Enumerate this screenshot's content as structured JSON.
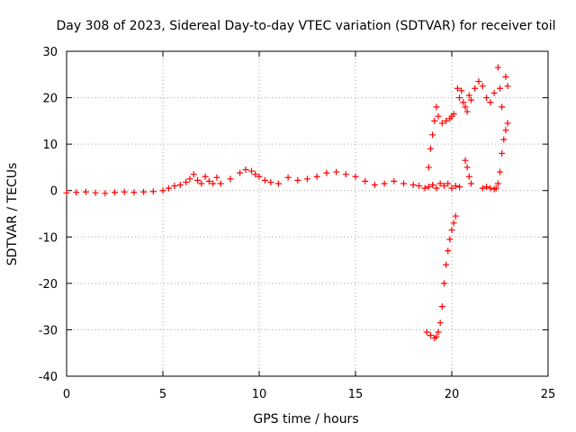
{
  "chart_data": {
    "type": "scatter",
    "title": "Day 308 of 2023, Sidereal Day-to-day VTEC variation (SDTVAR) for receiver toil",
    "xlabel": "GPS time / hours",
    "ylabel": "SDTVAR / TECUs",
    "xlim": [
      0,
      25
    ],
    "ylim": [
      -40,
      30
    ],
    "xticks": [
      0,
      5,
      10,
      15,
      20,
      25
    ],
    "yticks": [
      -40,
      -30,
      -20,
      -10,
      0,
      10,
      20,
      30
    ],
    "grid": true,
    "marker": "+",
    "color": "#ff0000",
    "series": [
      {
        "name": "main",
        "x": [
          0.0,
          0.5,
          1.0,
          1.5,
          2.0,
          2.5,
          3.0,
          3.5,
          4.0,
          4.5,
          5.0,
          5.3,
          5.6,
          5.9,
          6.2,
          6.4,
          6.6,
          6.8,
          7.0,
          7.2,
          7.4,
          7.6,
          7.8,
          8.0,
          8.5,
          9.0,
          9.3,
          9.6,
          9.8,
          10.0,
          10.3,
          10.6,
          11.0,
          11.5,
          12.0,
          12.5,
          13.0,
          13.5,
          14.0,
          14.5,
          15.0,
          15.5,
          16.0,
          16.5,
          17.0,
          17.5,
          18.0,
          18.3,
          18.6,
          18.8,
          19.0,
          19.2,
          19.4,
          19.6,
          19.8,
          20.0,
          20.2,
          20.4
        ],
        "y": [
          -0.5,
          -0.4,
          -0.3,
          -0.5,
          -0.6,
          -0.4,
          -0.3,
          -0.4,
          -0.3,
          -0.2,
          0.0,
          0.5,
          1.0,
          1.2,
          1.8,
          2.5,
          3.5,
          2.2,
          1.5,
          3.0,
          2.0,
          1.5,
          2.8,
          1.5,
          2.5,
          3.8,
          4.5,
          4.2,
          3.5,
          3.0,
          2.2,
          1.8,
          1.5,
          2.8,
          2.2,
          2.5,
          3.0,
          3.8,
          4.0,
          3.5,
          3.0,
          2.0,
          1.2,
          1.5,
          2.0,
          1.5,
          1.2,
          1.0,
          0.5,
          0.8,
          1.2,
          0.5,
          1.5,
          1.0,
          1.5,
          0.5,
          1.0,
          0.8
        ]
      },
      {
        "name": "rise-a",
        "x": [
          18.8,
          18.9,
          19.0,
          19.1,
          19.2,
          19.3,
          19.5,
          19.7,
          19.9,
          20.0,
          20.1
        ],
        "y": [
          5.0,
          9.0,
          12.0,
          15.0,
          18.0,
          16.0,
          14.5,
          15.0,
          15.5,
          16.0,
          16.5
        ]
      },
      {
        "name": "dip",
        "x": [
          18.7,
          18.9,
          19.1,
          19.2,
          19.3,
          19.4,
          19.5,
          19.6,
          19.7,
          19.8,
          19.9,
          20.0,
          20.1,
          20.2
        ],
        "y": [
          -30.5,
          -31.2,
          -31.8,
          -31.5,
          -30.5,
          -28.5,
          -25.0,
          -20.0,
          -16.0,
          -13.0,
          -10.5,
          -8.5,
          -7.0,
          -5.5
        ]
      },
      {
        "name": "cluster",
        "x": [
          20.3,
          20.4,
          20.5,
          20.6,
          20.7,
          20.8,
          20.9,
          21.0,
          21.2,
          21.4,
          21.6,
          21.8,
          22.0,
          22.2,
          22.4,
          22.5,
          22.6,
          22.8,
          22.9
        ],
        "y": [
          22.0,
          20.0,
          21.5,
          19.0,
          18.0,
          17.0,
          20.5,
          19.5,
          22.0,
          23.5,
          22.5,
          20.0,
          19.0,
          21.0,
          26.5,
          22.0,
          18.0,
          24.5,
          22.5
        ]
      },
      {
        "name": "spike",
        "x": [
          20.7,
          20.8,
          20.9,
          21.0
        ],
        "y": [
          6.5,
          5.0,
          3.0,
          1.5
        ]
      },
      {
        "name": "rise-b",
        "x": [
          21.6,
          21.8,
          22.0,
          22.2,
          22.3,
          22.4,
          22.5,
          22.6,
          22.7,
          22.8,
          22.9
        ],
        "y": [
          0.5,
          0.8,
          0.5,
          0.3,
          0.5,
          1.5,
          4.0,
          8.0,
          11.0,
          13.0,
          14.5
        ]
      }
    ]
  }
}
